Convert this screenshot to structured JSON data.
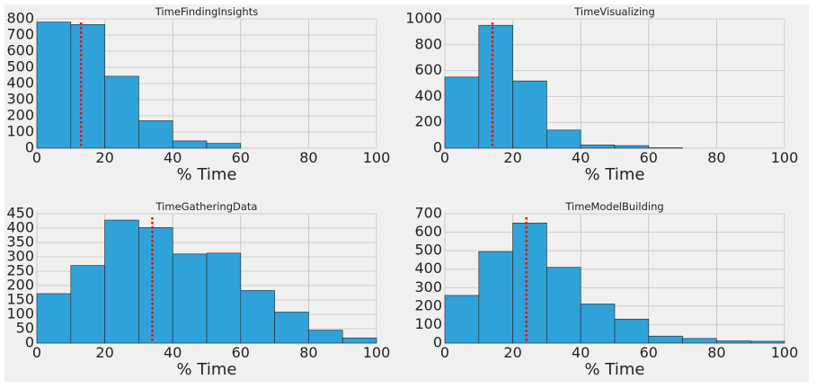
{
  "figure": {
    "background": "#f0f0f0",
    "bar_color": "#30a2da",
    "bar_edge_color": "#222222",
    "grid_color": "#cbcbcb",
    "median_line_color": "#ff0000"
  },
  "chart_data": [
    {
      "type": "bar",
      "title": "TimeFindingInsights",
      "xlabel": "% Time",
      "ylabel": "",
      "xlim": [
        0,
        100
      ],
      "ylim": [
        0,
        800
      ],
      "xticks": [
        0,
        20,
        40,
        60,
        80,
        100
      ],
      "yticks": [
        0,
        100,
        200,
        300,
        400,
        500,
        600,
        700,
        800
      ],
      "bin_edges": [
        0,
        10,
        20,
        30,
        40,
        50,
        60
      ],
      "values": [
        780,
        765,
        445,
        170,
        45,
        30
      ],
      "median": 13,
      "grid": true
    },
    {
      "type": "bar",
      "title": "TimeVisualizing",
      "xlabel": "% Time",
      "ylabel": "",
      "xlim": [
        0,
        100
      ],
      "ylim": [
        0,
        1000
      ],
      "xticks": [
        0,
        20,
        40,
        60,
        80,
        100
      ],
      "yticks": [
        0,
        200,
        400,
        600,
        800,
        1000
      ],
      "bin_edges": [
        0,
        10,
        20,
        30,
        40,
        50,
        60,
        70
      ],
      "values": [
        550,
        950,
        520,
        140,
        25,
        20,
        3
      ],
      "median": 14,
      "grid": true
    },
    {
      "type": "bar",
      "title": "TimeGatheringData",
      "xlabel": "% Time",
      "ylabel": "",
      "xlim": [
        0,
        100
      ],
      "ylim": [
        0,
        450
      ],
      "xticks": [
        0,
        20,
        40,
        60,
        80,
        100
      ],
      "yticks": [
        0,
        50,
        100,
        150,
        200,
        250,
        300,
        350,
        400,
        450
      ],
      "bin_edges": [
        0,
        10,
        20,
        30,
        40,
        50,
        60,
        70,
        80,
        90,
        100
      ],
      "values": [
        172,
        270,
        428,
        402,
        310,
        313,
        183,
        108,
        45,
        18
      ],
      "median": 34,
      "grid": true
    },
    {
      "type": "bar",
      "title": "TimeModelBuilding",
      "xlabel": "% Time",
      "ylabel": "",
      "xlim": [
        0,
        100
      ],
      "ylim": [
        0,
        700
      ],
      "xticks": [
        0,
        20,
        40,
        60,
        80,
        100
      ],
      "yticks": [
        0,
        100,
        200,
        300,
        400,
        500,
        600,
        700
      ],
      "bin_edges": [
        0,
        10,
        20,
        30,
        40,
        50,
        60,
        70,
        80,
        90,
        100
      ],
      "values": [
        258,
        495,
        650,
        410,
        212,
        130,
        38,
        25,
        12,
        10
      ],
      "median": 24,
      "grid": true
    }
  ]
}
